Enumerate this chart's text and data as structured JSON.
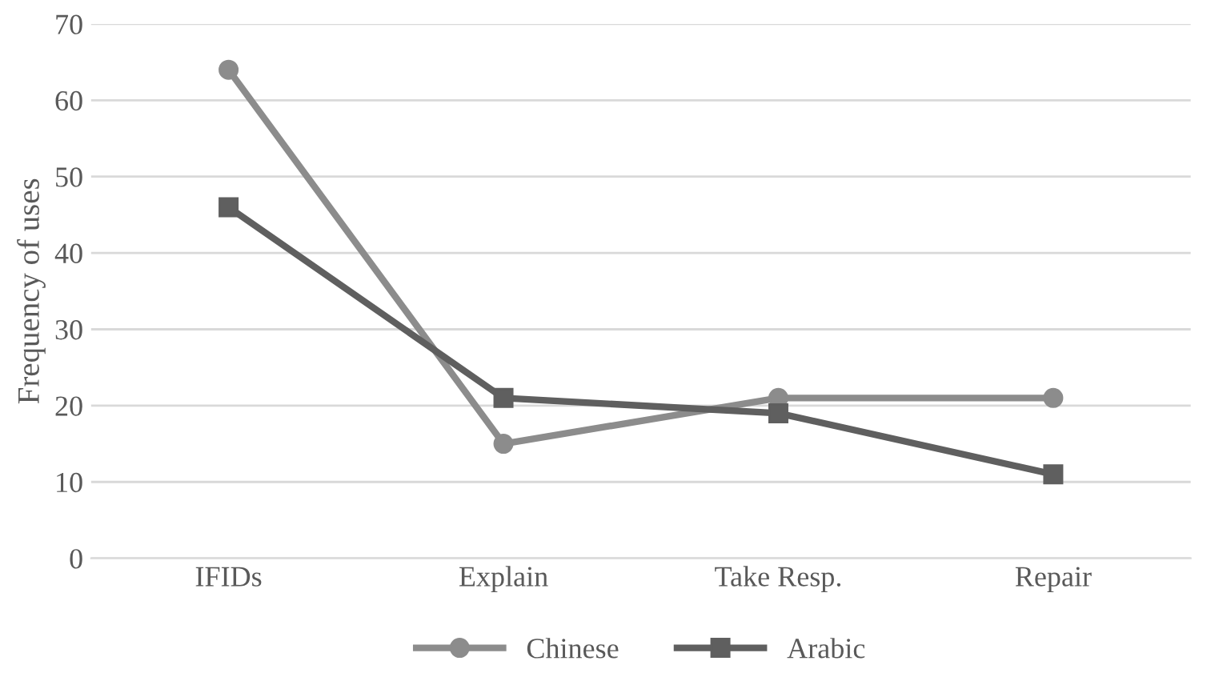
{
  "chart_data": {
    "type": "line",
    "ylabel": "Frequency of uses",
    "categories": [
      "IFIDs",
      "Explain",
      "Take Resp.",
      "Repair"
    ],
    "series": [
      {
        "name": "Chinese",
        "color": "#8c8c8c",
        "marker": "circle",
        "values": [
          64,
          15,
          21,
          21
        ]
      },
      {
        "name": "Arabic",
        "color": "#5f5f5f",
        "marker": "square",
        "values": [
          46,
          21,
          19,
          11
        ]
      }
    ],
    "ylim": [
      0,
      70
    ],
    "yticks": [
      0,
      10,
      20,
      30,
      40,
      50,
      60,
      70
    ],
    "grid": "y",
    "legend": "bottom",
    "line_style": "solid"
  }
}
